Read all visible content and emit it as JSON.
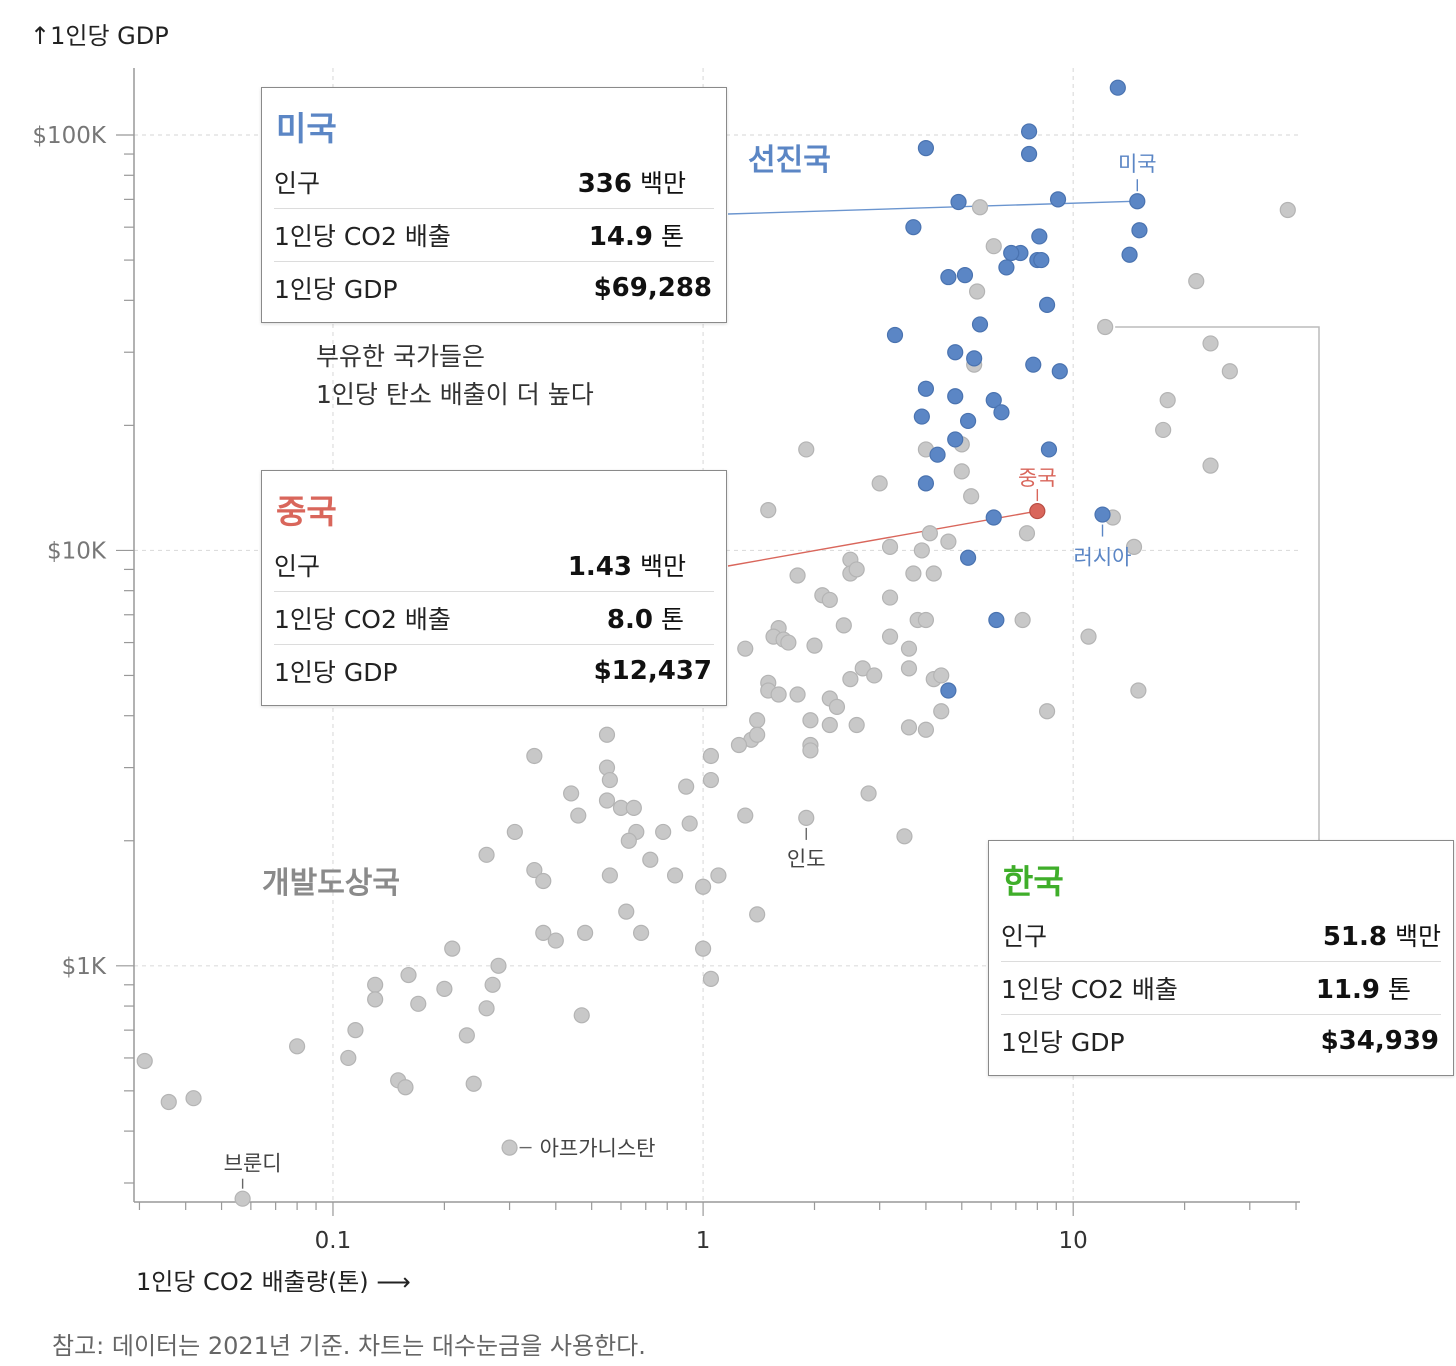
{
  "y_axis_label": "↑1인당 GDP",
  "x_axis_label": "1인당 CO2 배출량(톤)  ⟶",
  "note": "참고: 데이터는 2021년 기준. 차트는 대수눈금을 사용한다.",
  "group_labels": {
    "developed": "선진국",
    "developing": "개발도상국"
  },
  "annotation": {
    "line1": "부유한 국가들은",
    "line2": "1인당 탄소 배출이 더 높다"
  },
  "colors": {
    "developed": "#5b86c5",
    "developing": "#c8c8c8",
    "china": "#d9665b",
    "korea": "#3fae2a",
    "usa_title": "#5b86c5"
  },
  "cards": {
    "usa": {
      "title": "미국",
      "rows": [
        {
          "label": "인구",
          "value": "336",
          "unit": "백만"
        },
        {
          "label": "1인당 CO2 배출",
          "value": "14.9",
          "unit": "톤"
        },
        {
          "label": "1인당 GDP",
          "value": "$69,288",
          "unit": ""
        }
      ]
    },
    "china": {
      "title": "중국",
      "rows": [
        {
          "label": "인구",
          "value": "1.43",
          "unit": "백만"
        },
        {
          "label": "1인당 CO2 배출",
          "value": "8.0",
          "unit": "톤"
        },
        {
          "label": "1인당 GDP",
          "value": "$12,437",
          "unit": ""
        }
      ]
    },
    "korea": {
      "title": "한국",
      "rows": [
        {
          "label": "인구",
          "value": "51.8",
          "unit": "백만"
        },
        {
          "label": "1인당 CO2 배출",
          "value": "11.9",
          "unit": "톤"
        },
        {
          "label": "1인당 GDP",
          "value": "$34,939",
          "unit": ""
        }
      ]
    }
  },
  "chart_data": {
    "type": "scatter",
    "x_scale": "log",
    "y_scale": "log",
    "xlim": [
      0.029,
      41
    ],
    "ylim": [
      270,
      145000
    ],
    "x_ticks": [
      {
        "value": 0.1,
        "label": "0.1"
      },
      {
        "value": 1,
        "label": "1"
      },
      {
        "value": 10,
        "label": "10"
      }
    ],
    "y_ticks": [
      {
        "value": 1000,
        "label": "$1K"
      },
      {
        "value": 10000,
        "label": "$10K"
      },
      {
        "value": 100000,
        "label": "$100K"
      }
    ],
    "grid": true,
    "highlights": [
      {
        "label": "미국",
        "x": 14.9,
        "y": 69288,
        "group": "developed"
      },
      {
        "label": "중국",
        "x": 8.0,
        "y": 12437,
        "group": "china"
      },
      {
        "label": "러시아",
        "x": 12.0,
        "y": 12200,
        "group": "developed"
      },
      {
        "label": "인도",
        "x": 1.9,
        "y": 2270,
        "group": "developing"
      },
      {
        "label": "아프가니스탄",
        "x": 0.3,
        "y": 365,
        "group": "developing"
      },
      {
        "label": "브룬디",
        "x": 0.057,
        "y": 275,
        "group": "developing"
      }
    ],
    "developed": [
      [
        13.2,
        130000
      ],
      [
        4.0,
        93000
      ],
      [
        7.6,
        102000
      ],
      [
        7.6,
        90000
      ],
      [
        4.9,
        69000
      ],
      [
        9.1,
        70000
      ],
      [
        3.7,
        60000
      ],
      [
        8.1,
        57000
      ],
      [
        7.2,
        52000
      ],
      [
        6.8,
        52000
      ],
      [
        8.0,
        50000
      ],
      [
        8.2,
        50000
      ],
      [
        6.6,
        48000
      ],
      [
        5.1,
        46000
      ],
      [
        4.6,
        45500
      ],
      [
        15.1,
        59000
      ],
      [
        14.2,
        51500
      ],
      [
        8.5,
        39000
      ],
      [
        5.6,
        35000
      ],
      [
        3.3,
        33000
      ],
      [
        4.8,
        30000
      ],
      [
        5.4,
        29000
      ],
      [
        7.8,
        28000
      ],
      [
        9.2,
        27000
      ],
      [
        4.0,
        24500
      ],
      [
        4.8,
        23500
      ],
      [
        6.1,
        23000
      ],
      [
        6.4,
        21500
      ],
      [
        3.9,
        21000
      ],
      [
        5.2,
        20500
      ],
      [
        4.8,
        18500
      ],
      [
        4.3,
        17000
      ],
      [
        4.0,
        14500
      ],
      [
        8.6,
        17500
      ],
      [
        6.1,
        12000
      ],
      [
        5.2,
        9600
      ],
      [
        6.2,
        6800
      ],
      [
        4.6,
        4600
      ]
    ],
    "developing": [
      [
        5.6,
        67000
      ],
      [
        6.1,
        54000
      ],
      [
        5.5,
        42000
      ],
      [
        12.2,
        34500
      ],
      [
        21.5,
        44500
      ],
      [
        23.5,
        31500
      ],
      [
        26.5,
        27000
      ],
      [
        38.0,
        66000
      ],
      [
        5.4,
        28000
      ],
      [
        18.0,
        23000
      ],
      [
        17.5,
        19500
      ],
      [
        23.5,
        16000
      ],
      [
        4.0,
        17500
      ],
      [
        5.0,
        18000
      ],
      [
        5.0,
        15500
      ],
      [
        3.0,
        14500
      ],
      [
        5.3,
        13500
      ],
      [
        1.9,
        17500
      ],
      [
        1.5,
        12500
      ],
      [
        4.6,
        10500
      ],
      [
        4.1,
        11000
      ],
      [
        3.2,
        10200
      ],
      [
        3.9,
        10000
      ],
      [
        7.5,
        11000
      ],
      [
        12.8,
        12000
      ],
      [
        14.6,
        10200
      ],
      [
        2.5,
        9500
      ],
      [
        2.5,
        8800
      ],
      [
        2.6,
        9000
      ],
      [
        3.7,
        8800
      ],
      [
        4.2,
        8800
      ],
      [
        1.8,
        8700
      ],
      [
        2.1,
        7800
      ],
      [
        2.2,
        7600
      ],
      [
        3.2,
        7700
      ],
      [
        3.8,
        6800
      ],
      [
        4.0,
        6800
      ],
      [
        7.3,
        6800
      ],
      [
        2.4,
        6600
      ],
      [
        1.6,
        6500
      ],
      [
        1.55,
        6200
      ],
      [
        1.65,
        6100
      ],
      [
        1.7,
        6000
      ],
      [
        2.0,
        5900
      ],
      [
        3.2,
        6200
      ],
      [
        3.6,
        5800
      ],
      [
        11.0,
        6200
      ],
      [
        1.3,
        5800
      ],
      [
        3.6,
        5200
      ],
      [
        2.7,
        5200
      ],
      [
        2.5,
        4900
      ],
      [
        2.9,
        5000
      ],
      [
        4.2,
        4900
      ],
      [
        4.4,
        5000
      ],
      [
        1.0,
        5000
      ],
      [
        1.5,
        4800
      ],
      [
        1.5,
        4600
      ],
      [
        1.6,
        4500
      ],
      [
        1.8,
        4500
      ],
      [
        0.95,
        4600
      ],
      [
        15.0,
        4600
      ],
      [
        2.2,
        4400
      ],
      [
        2.3,
        4200
      ],
      [
        4.4,
        4100
      ],
      [
        8.5,
        4100
      ],
      [
        1.4,
        3900
      ],
      [
        1.95,
        3900
      ],
      [
        2.2,
        3800
      ],
      [
        2.6,
        3800
      ],
      [
        3.6,
        3750
      ],
      [
        4.0,
        3700
      ],
      [
        1.35,
        3500
      ],
      [
        1.4,
        3600
      ],
      [
        1.25,
        3400
      ],
      [
        0.55,
        3600
      ],
      [
        1.95,
        3400
      ],
      [
        1.95,
        3300
      ],
      [
        0.35,
        3200
      ],
      [
        1.05,
        3200
      ],
      [
        0.55,
        3000
      ],
      [
        0.56,
        2800
      ],
      [
        0.9,
        2700
      ],
      [
        1.05,
        2800
      ],
      [
        2.8,
        2600
      ],
      [
        0.44,
        2600
      ],
      [
        0.46,
        2300
      ],
      [
        0.55,
        2500
      ],
      [
        0.6,
        2400
      ],
      [
        0.65,
        2400
      ],
      [
        1.3,
        2300
      ],
      [
        0.78,
        2100
      ],
      [
        0.66,
        2100
      ],
      [
        0.92,
        2200
      ],
      [
        0.63,
        2000
      ],
      [
        0.31,
        2100
      ],
      [
        0.26,
        1850
      ],
      [
        3.5,
        2050
      ],
      [
        0.72,
        1800
      ],
      [
        0.84,
        1650
      ],
      [
        0.35,
        1700
      ],
      [
        0.37,
        1600
      ],
      [
        0.56,
        1650
      ],
      [
        1.1,
        1650
      ],
      [
        1.0,
        1550
      ],
      [
        0.62,
        1350
      ],
      [
        1.4,
        1330
      ],
      [
        0.37,
        1200
      ],
      [
        0.48,
        1200
      ],
      [
        0.4,
        1150
      ],
      [
        0.68,
        1200
      ],
      [
        0.21,
        1100
      ],
      [
        1.0,
        1100
      ],
      [
        0.28,
        1000
      ],
      [
        0.16,
        950
      ],
      [
        0.27,
        900
      ],
      [
        0.13,
        900
      ],
      [
        0.2,
        880
      ],
      [
        0.13,
        830
      ],
      [
        1.05,
        930
      ],
      [
        0.17,
        810
      ],
      [
        0.26,
        790
      ],
      [
        0.47,
        760
      ],
      [
        0.115,
        700
      ],
      [
        0.23,
        680
      ],
      [
        0.08,
        640
      ],
      [
        0.11,
        600
      ],
      [
        0.031,
        590
      ],
      [
        0.24,
        520
      ],
      [
        0.15,
        530
      ],
      [
        0.157,
        510
      ],
      [
        0.042,
        480
      ],
      [
        0.036,
        470
      ]
    ]
  }
}
